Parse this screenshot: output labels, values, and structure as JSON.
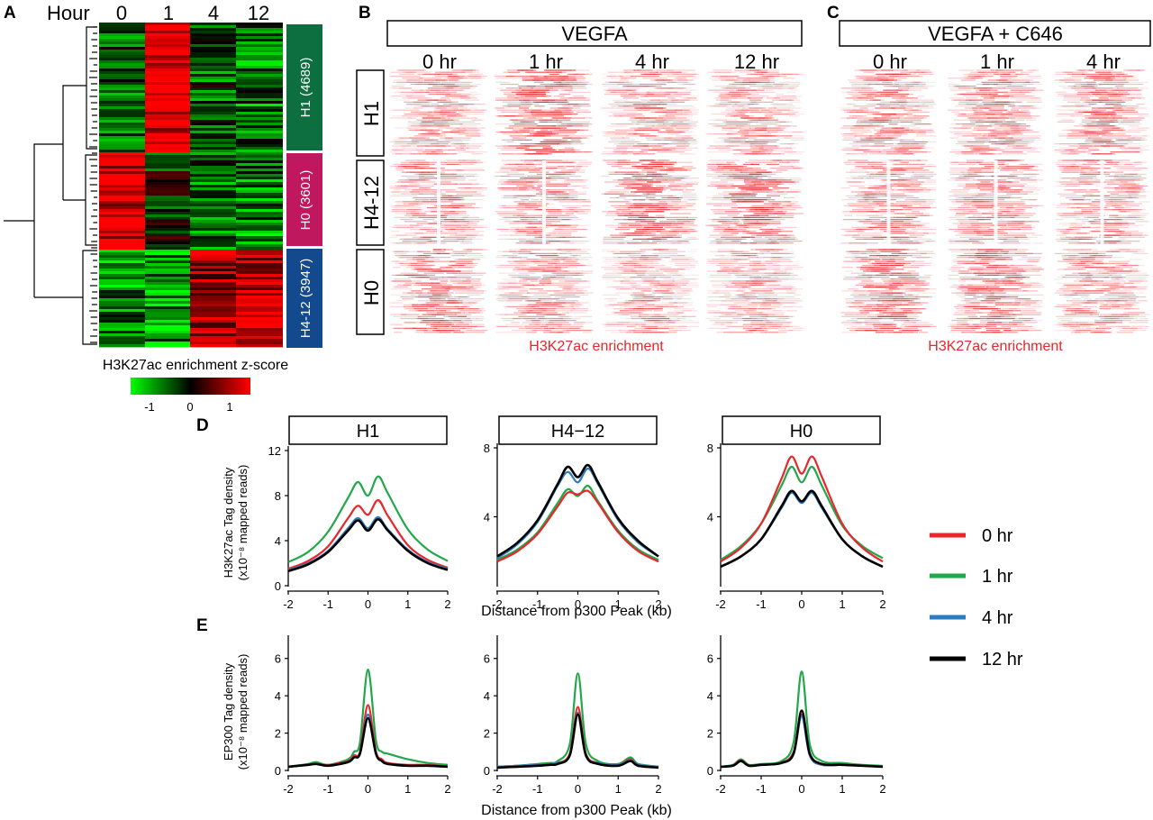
{
  "panels": {
    "A": "A",
    "B": "B",
    "C": "C",
    "D": "D",
    "E": "E"
  },
  "panelA": {
    "hour_label": "Hour",
    "hours": [
      "0",
      "1",
      "4",
      "12"
    ],
    "clusters": [
      {
        "label": "H1 (4689)",
        "color": "#0d6e3f"
      },
      {
        "label": "H0 (3601)",
        "color": "#c0185e"
      },
      {
        "label": "H4-12 (3947)",
        "color": "#134a8e"
      }
    ],
    "colorbar_title": "H3K27ac enrichment z-score",
    "colorbar_ticks": [
      "-1",
      "0",
      "1"
    ],
    "colorbar_colors": [
      "#00ff00",
      "#000000",
      "#ff0000"
    ]
  },
  "panelB": {
    "title": "VEGFA",
    "timepoints": [
      "0 hr",
      "1 hr",
      "4 hr",
      "12 hr"
    ],
    "row_labels": [
      "H1",
      "H4-12",
      "H0"
    ],
    "caption": "H3K27ac enrichment"
  },
  "panelC": {
    "title": "VEGFA + C646",
    "timepoints": [
      "0 hr",
      "1 hr",
      "4 hr"
    ],
    "caption": "H3K27ac enrichment"
  },
  "legend": {
    "items": [
      {
        "label": "0 hr",
        "color": "#e8262b"
      },
      {
        "label": "1 hr",
        "color": "#22a74a"
      },
      {
        "label": "4 hr",
        "color": "#2e7cc0"
      },
      {
        "label": "12 hr",
        "color": "#000000"
      }
    ]
  },
  "panelD": {
    "ylabel_line1": "H3K27ac Tag density",
    "ylabel_line2": "(x10⁻⁸ mapped reads)",
    "xlabel": "Distance from p300 Peak (kb)"
  },
  "panelE": {
    "ylabel_line1": "EP300 Tag density",
    "ylabel_line2": "(x10⁻⁸ mapped reads)",
    "xlabel": "Distance from p300 Peak (kb)"
  },
  "chart_data": [
    {
      "type": "line",
      "panel": "D",
      "title": "H1",
      "x": [
        -2,
        -1.5,
        -1,
        -0.5,
        -0.25,
        0,
        0.25,
        0.5,
        1,
        1.5,
        2
      ],
      "xlim": [
        -2,
        2
      ],
      "ylim": [
        0,
        12
      ],
      "yticks": [
        "0",
        "4",
        "8",
        "12"
      ],
      "xticks": [
        "-2",
        "-1",
        "0",
        "1",
        "2"
      ],
      "series": [
        {
          "name": "0 hr",
          "values": [
            1.5,
            2.2,
            3.5,
            6.0,
            7.1,
            6.3,
            7.6,
            6.2,
            3.6,
            2.3,
            1.6
          ]
        },
        {
          "name": "1 hr",
          "values": [
            2.1,
            3.0,
            4.8,
            7.8,
            9.2,
            8.0,
            9.7,
            8.2,
            5.0,
            3.2,
            2.2
          ]
        },
        {
          "name": "4 hr",
          "values": [
            1.4,
            2.0,
            3.1,
            5.1,
            6.0,
            5.1,
            6.1,
            5.0,
            3.2,
            2.1,
            1.5
          ]
        },
        {
          "name": "12 hr",
          "values": [
            1.3,
            1.9,
            3.0,
            4.9,
            5.8,
            4.9,
            5.9,
            4.9,
            3.1,
            2.0,
            1.4
          ]
        }
      ]
    },
    {
      "type": "line",
      "panel": "D",
      "title": "H4−12",
      "x": [
        -2,
        -1.5,
        -1,
        -0.5,
        -0.25,
        0,
        0.25,
        0.5,
        1,
        1.5,
        2
      ],
      "xlim": [
        -2,
        2
      ],
      "ylim": [
        0,
        8
      ],
      "yticks": [
        "4",
        "8"
      ],
      "xticks": [
        "-2",
        "-1",
        "0",
        "1",
        "2"
      ],
      "series": [
        {
          "name": "0 hr",
          "values": [
            1.4,
            2.0,
            3.0,
            4.6,
            5.4,
            5.3,
            5.5,
            4.8,
            3.1,
            2.0,
            1.4
          ]
        },
        {
          "name": "1 hr",
          "values": [
            1.5,
            2.1,
            3.1,
            4.8,
            5.6,
            5.2,
            5.8,
            4.9,
            3.2,
            2.1,
            1.5
          ]
        },
        {
          "name": "4 hr",
          "values": [
            1.6,
            2.4,
            3.7,
            5.8,
            6.6,
            6.0,
            6.8,
            5.9,
            3.8,
            2.5,
            1.7
          ]
        },
        {
          "name": "12 hr",
          "values": [
            1.7,
            2.5,
            3.8,
            5.9,
            6.9,
            6.3,
            7.0,
            6.0,
            3.9,
            2.6,
            1.7
          ]
        }
      ]
    },
    {
      "type": "line",
      "panel": "D",
      "title": "H0",
      "x": [
        -2,
        -1.5,
        -1,
        -0.5,
        -0.25,
        0,
        0.25,
        0.5,
        1,
        1.5,
        2
      ],
      "xlim": [
        -2,
        2
      ],
      "ylim": [
        0,
        8
      ],
      "yticks": [
        "4",
        "8"
      ],
      "xticks": [
        "-2",
        "-1",
        "0",
        "1",
        "2"
      ],
      "series": [
        {
          "name": "0 hr",
          "values": [
            1.4,
            2.2,
            3.6,
            6.2,
            7.5,
            6.5,
            7.5,
            6.3,
            3.6,
            2.2,
            1.4
          ]
        },
        {
          "name": "1 hr",
          "values": [
            1.5,
            2.3,
            3.6,
            5.8,
            6.9,
            6.0,
            6.9,
            5.8,
            3.5,
            2.3,
            1.6
          ]
        },
        {
          "name": "4 hr",
          "values": [
            1.1,
            1.7,
            2.7,
            4.5,
            5.4,
            4.8,
            5.4,
            4.5,
            2.7,
            1.7,
            1.1
          ]
        },
        {
          "name": "12 hr",
          "values": [
            1.1,
            1.7,
            2.7,
            4.6,
            5.5,
            4.9,
            5.5,
            4.6,
            2.7,
            1.7,
            1.1
          ]
        }
      ]
    },
    {
      "type": "line",
      "panel": "E",
      "title": "",
      "x": [
        -2,
        -1.5,
        -1.3,
        -1,
        -0.5,
        -0.35,
        -0.2,
        0,
        0.2,
        0.35,
        0.5,
        1,
        1.5,
        2
      ],
      "xlim": [
        -2,
        2
      ],
      "ylim": [
        0,
        7
      ],
      "yticks": [
        "0",
        "2",
        "4",
        "6"
      ],
      "xticks": [
        "-2",
        "-1",
        "0",
        "1",
        "2"
      ],
      "series": [
        {
          "name": "0 hr",
          "values": [
            0.2,
            0.3,
            0.35,
            0.3,
            0.5,
            0.8,
            1.0,
            3.5,
            1.0,
            0.6,
            0.4,
            0.3,
            0.3,
            0.2
          ]
        },
        {
          "name": "1 hr",
          "values": [
            0.2,
            0.35,
            0.45,
            0.3,
            0.6,
            1.0,
            1.5,
            5.4,
            1.6,
            1.0,
            0.9,
            0.6,
            0.4,
            0.3
          ]
        },
        {
          "name": "4 hr",
          "values": [
            0.2,
            0.3,
            0.35,
            0.25,
            0.45,
            0.7,
            0.9,
            3.0,
            0.9,
            0.5,
            0.35,
            0.25,
            0.25,
            0.2
          ]
        },
        {
          "name": "12 hr",
          "values": [
            0.2,
            0.3,
            0.35,
            0.25,
            0.45,
            0.7,
            0.9,
            2.8,
            0.9,
            0.5,
            0.35,
            0.25,
            0.25,
            0.2
          ]
        }
      ]
    },
    {
      "type": "line",
      "panel": "E",
      "title": "",
      "x": [
        -2,
        -1.5,
        -1,
        -0.7,
        -0.5,
        -0.2,
        0,
        0.2,
        0.5,
        1,
        1.3,
        1.5,
        2
      ],
      "xlim": [
        -2,
        2
      ],
      "ylim": [
        0,
        7
      ],
      "yticks": [
        "0",
        "2",
        "4",
        "6"
      ],
      "xticks": [
        "-2",
        "-1",
        "0",
        "1",
        "2"
      ],
      "series": [
        {
          "name": "0 hr",
          "values": [
            0.2,
            0.25,
            0.3,
            0.35,
            0.4,
            0.9,
            3.4,
            0.9,
            0.4,
            0.3,
            0.6,
            0.3,
            0.2
          ]
        },
        {
          "name": "1 hr",
          "values": [
            0.2,
            0.25,
            0.35,
            0.4,
            0.5,
            1.4,
            5.2,
            1.4,
            0.5,
            0.35,
            0.7,
            0.35,
            0.2
          ]
        },
        {
          "name": "4 hr",
          "values": [
            0.2,
            0.25,
            0.3,
            0.35,
            0.4,
            0.8,
            3.1,
            0.8,
            0.4,
            0.3,
            0.55,
            0.3,
            0.2
          ]
        },
        {
          "name": "12 hr",
          "values": [
            0.15,
            0.2,
            0.25,
            0.3,
            0.35,
            0.8,
            3.0,
            0.8,
            0.35,
            0.25,
            0.5,
            0.25,
            0.15
          ]
        }
      ]
    },
    {
      "type": "line",
      "panel": "E",
      "title": "",
      "x": [
        -2,
        -1.7,
        -1.5,
        -1.3,
        -1,
        -0.5,
        -0.2,
        0,
        0.2,
        0.5,
        1,
        1.5,
        2
      ],
      "xlim": [
        -2,
        2
      ],
      "ylim": [
        0,
        7
      ],
      "yticks": [
        "0",
        "2",
        "4",
        "6"
      ],
      "xticks": [
        "-2",
        "-1",
        "0",
        "1",
        "2"
      ],
      "series": [
        {
          "name": "0 hr",
          "values": [
            0.2,
            0.25,
            0.55,
            0.25,
            0.3,
            0.4,
            1.0,
            3.0,
            0.8,
            0.3,
            0.3,
            0.25,
            0.2
          ]
        },
        {
          "name": "1 hr",
          "values": [
            0.2,
            0.3,
            0.6,
            0.3,
            0.35,
            0.5,
            1.5,
            5.3,
            1.4,
            0.5,
            0.4,
            0.3,
            0.25
          ]
        },
        {
          "name": "4 hr",
          "values": [
            0.2,
            0.25,
            0.5,
            0.25,
            0.3,
            0.4,
            0.9,
            2.9,
            0.8,
            0.3,
            0.3,
            0.25,
            0.2
          ]
        },
        {
          "name": "12 hr",
          "values": [
            0.2,
            0.25,
            0.5,
            0.25,
            0.3,
            0.4,
            0.9,
            3.2,
            0.9,
            0.35,
            0.3,
            0.25,
            0.2
          ]
        }
      ]
    }
  ]
}
